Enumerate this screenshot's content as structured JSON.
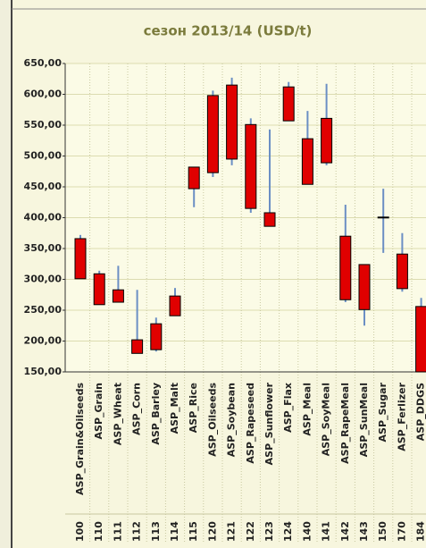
{
  "chart_data": {
    "type": "candlestick",
    "title": "сезон 2013/14   (USD/t)",
    "categories": [
      "ASP_Grain&Oilseeds",
      "ASP_Grain",
      "ASP_Wheat",
      "ASP_Corn",
      "ASP_Barley",
      "ASP_Malt",
      "ASP_Rice",
      "ASP_Oilseeds",
      "ASP_Soybean",
      "ASP_Rapeseed",
      "ASP_Sunflower",
      "ASP_Flax",
      "ASP_Meal",
      "ASP_SoyMeal",
      "ASP_RapeMeal",
      "ASP_SunMeal",
      "ASP_Sugar",
      "ASP_Ferlizer",
      "ASP_DDGS"
    ],
    "codes": [
      "100",
      "110",
      "111",
      "112",
      "113",
      "114",
      "115",
      "120",
      "121",
      "122",
      "123",
      "124",
      "140",
      "141",
      "142",
      "143",
      "150",
      "170",
      "184"
    ],
    "open": [
      301,
      259,
      263,
      180,
      186,
      241,
      447,
      473,
      495,
      415,
      386,
      557,
      454,
      489,
      267,
      251,
      400,
      285,
      150
    ],
    "close": [
      366,
      309,
      283,
      202,
      228,
      273,
      482,
      598,
      615,
      551,
      408,
      612,
      528,
      561,
      370,
      324,
      401,
      341,
      256
    ],
    "high": [
      372,
      314,
      322,
      283,
      238,
      286,
      482,
      606,
      627,
      561,
      543,
      620,
      573,
      617,
      421,
      324,
      447,
      375,
      270
    ],
    "low": [
      301,
      259,
      263,
      180,
      183,
      241,
      417,
      466,
      485,
      408,
      386,
      557,
      454,
      485,
      263,
      225,
      343,
      280,
      150
    ],
    "box_color": "#e00000",
    "whisker_color": "#6b8fc4",
    "ylim": [
      150,
      650
    ],
    "yticks": [
      {
        "value": 150,
        "label": "150,00"
      },
      {
        "value": 200,
        "label": "200,00"
      },
      {
        "value": 250,
        "label": "250,00"
      },
      {
        "value": 300,
        "label": "300,00"
      },
      {
        "value": 350,
        "label": "350,00"
      },
      {
        "value": 400,
        "label": "400,00"
      },
      {
        "value": 450,
        "label": "450,00"
      },
      {
        "value": 500,
        "label": "500,00"
      },
      {
        "value": 550,
        "label": "550,00"
      },
      {
        "value": 600,
        "label": "600,00"
      },
      {
        "value": 650,
        "label": "650,00"
      }
    ],
    "grid": true
  }
}
